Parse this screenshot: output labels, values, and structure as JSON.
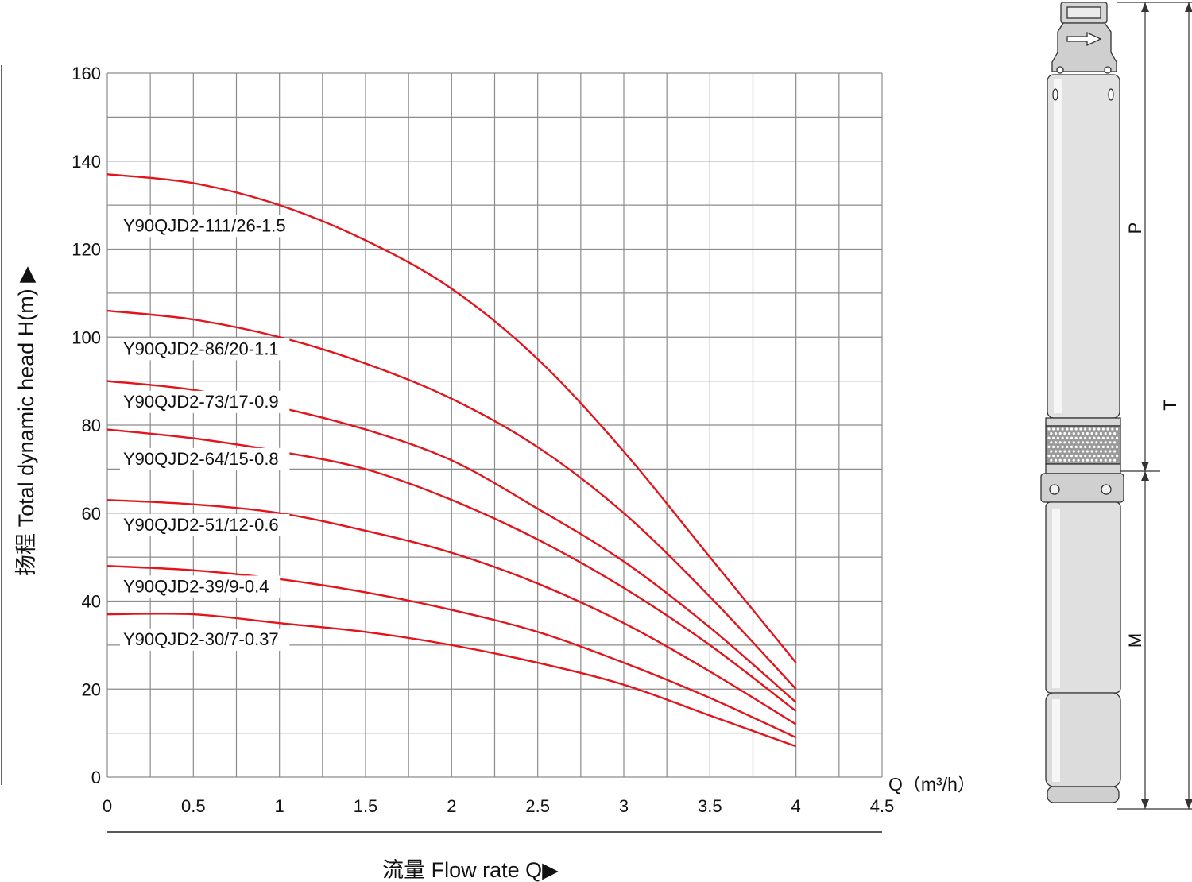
{
  "chart_data": {
    "type": "line",
    "title": "",
    "xlabel": "流量 Flow rate Q▶",
    "ylabel": "扬程 Total dynamic head H(m) ▶",
    "x_unit_label": "Q（m³/h）",
    "xlim": [
      0,
      4.5
    ],
    "ylim": [
      0,
      160
    ],
    "xticks": [
      "0",
      "0.5",
      "1",
      "1.5",
      "2",
      "2.5",
      "3",
      "3.5",
      "4",
      "4.5"
    ],
    "yticks": [
      "0",
      "20",
      "40",
      "60",
      "80",
      "100",
      "120",
      "140",
      "160"
    ],
    "grid": true,
    "series": [
      {
        "name": "Y90QJD2-111/26-1.5",
        "x": [
          0,
          0.5,
          1,
          1.5,
          2,
          2.5,
          3,
          3.5,
          4
        ],
        "y": [
          137,
          135,
          130,
          122,
          111,
          95,
          74,
          50,
          26
        ]
      },
      {
        "name": "Y90QJD2-86/20-1.1",
        "x": [
          0,
          0.5,
          1,
          1.5,
          2,
          2.5,
          3,
          3.5,
          4
        ],
        "y": [
          106,
          104,
          100,
          94,
          86,
          75,
          60,
          41,
          20
        ]
      },
      {
        "name": "Y90QJD2-73/17-0.9",
        "x": [
          0,
          0.5,
          1,
          1.5,
          2,
          2.5,
          3,
          3.5,
          4
        ],
        "y": [
          90,
          88,
          84,
          79,
          72,
          61,
          49,
          34,
          17
        ]
      },
      {
        "name": "Y90QJD2-64/15-0.8",
        "x": [
          0,
          0.5,
          1,
          1.5,
          2,
          2.5,
          3,
          3.5,
          4
        ],
        "y": [
          79,
          77,
          74,
          70,
          63,
          54,
          43,
          30,
          15
        ]
      },
      {
        "name": "Y90QJD2-51/12-0.6",
        "x": [
          0,
          0.5,
          1,
          1.5,
          2,
          2.5,
          3,
          3.5,
          4
        ],
        "y": [
          63,
          62,
          60,
          56,
          51,
          44,
          35,
          24,
          12
        ]
      },
      {
        "name": "Y90QJD2-39/9-0.4",
        "x": [
          0,
          0.5,
          1,
          1.5,
          2,
          2.5,
          3,
          3.5,
          4
        ],
        "y": [
          48,
          47,
          45,
          42,
          38,
          33,
          26,
          18,
          9
        ]
      },
      {
        "name": "Y90QJD2-30/7-0.37",
        "x": [
          0,
          0.5,
          1,
          1.5,
          2,
          2.5,
          3,
          3.5,
          4
        ],
        "y": [
          37,
          37,
          35,
          33,
          30,
          26,
          21,
          14,
          7
        ]
      }
    ]
  },
  "diagram": {
    "dimension_labels": [
      "P",
      "T",
      "M"
    ]
  },
  "colors": {
    "curve": "#e3141b",
    "grid": "#8c8c8c",
    "text": "#111111"
  }
}
